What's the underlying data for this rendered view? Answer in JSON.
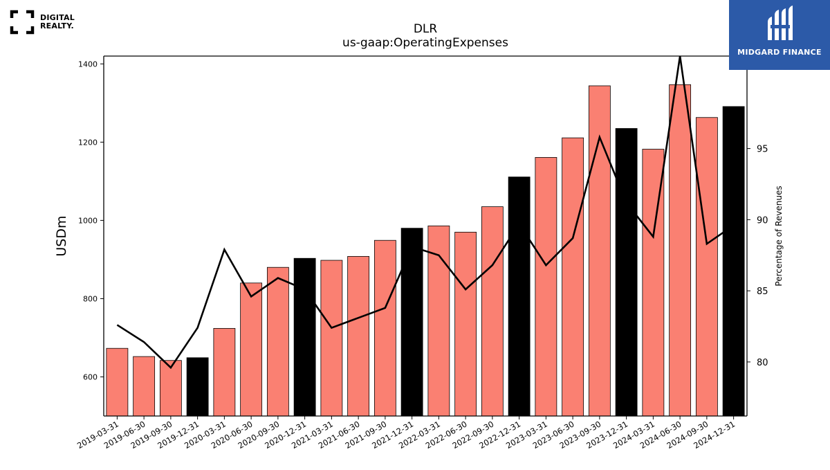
{
  "branding": {
    "left_logo_line1": "DIGITAL",
    "left_logo_line2": "REALTY.",
    "right_logo_text": "MIDGARD FINANCE",
    "right_logo_bg": "#2c5aa8"
  },
  "chart_data": {
    "type": "bar",
    "title": "DLR",
    "subtitle": "us-gaap:OperatingExpenses",
    "ylabel": "USDm",
    "y2label": "Percentage of Revenues",
    "ylim": [
      500,
      1420
    ],
    "y2lim": [
      76.2,
      101.5
    ],
    "yticks": [
      600,
      800,
      1000,
      1200,
      1400
    ],
    "y2ticks": [
      80,
      85,
      90,
      95
    ],
    "categories": [
      "2019-03-31",
      "2019-06-30",
      "2019-09-30",
      "2019-12-31",
      "2020-03-31",
      "2020-06-30",
      "2020-09-30",
      "2020-12-31",
      "2021-03-31",
      "2021-06-30",
      "2021-09-30",
      "2021-12-31",
      "2022-03-31",
      "2022-06-30",
      "2022-09-30",
      "2022-12-31",
      "2023-03-31",
      "2023-06-30",
      "2023-09-30",
      "2023-12-31",
      "2024-03-31",
      "2024-06-30",
      "2024-09-30",
      "2024-12-31"
    ],
    "series": [
      {
        "values": [
          673,
          652,
          642,
          649,
          724,
          840,
          880,
          903,
          898,
          908,
          949,
          980,
          986,
          970,
          1035,
          1111,
          1161,
          1211,
          1344,
          1235,
          1182,
          1347,
          1263,
          1291
        ]
      },
      {
        "axis": "right",
        "type": "line",
        "values": [
          82.6,
          81.4,
          79.6,
          82.4,
          87.9,
          84.6,
          85.9,
          85.1,
          82.4,
          83.1,
          83.8,
          88.1,
          87.5,
          85.1,
          86.8,
          89.7,
          86.8,
          88.7,
          95.8,
          91.2,
          88.8,
          101.5,
          88.3,
          89.6
        ]
      }
    ],
    "bar_colors": {
      "quarter": "#fa8072",
      "year_end": "#000000"
    },
    "line_color": "#000000"
  }
}
